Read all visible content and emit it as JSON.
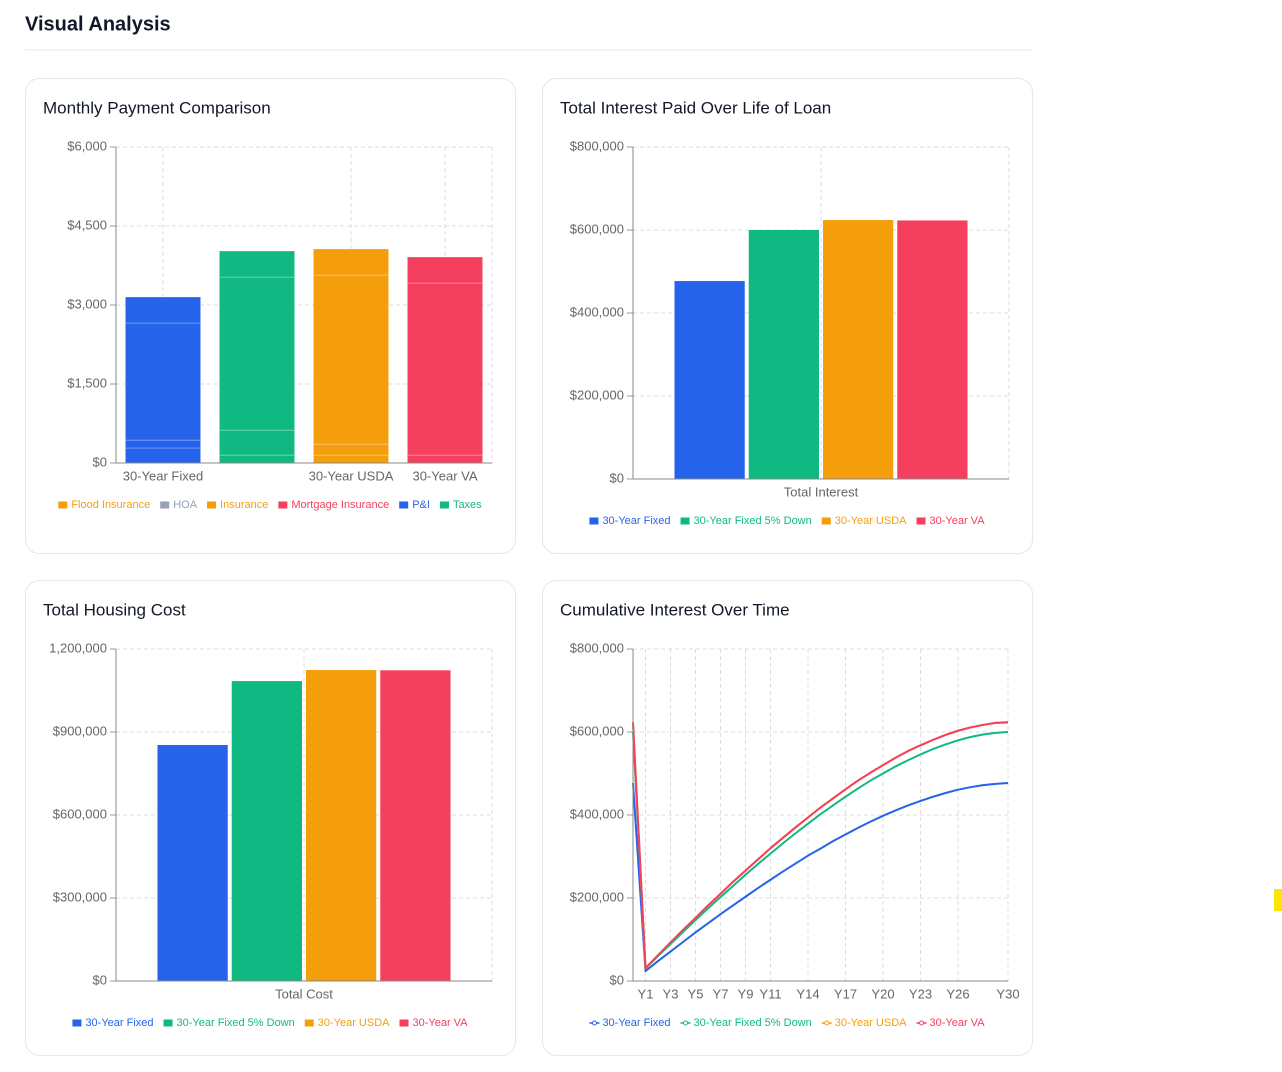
{
  "header": {
    "title": "Visual Analysis"
  },
  "chart_data": [
    {
      "type": "stacked_bar",
      "title": "Monthly Payment Comparison",
      "categories": [
        "30-Year Fixed",
        null,
        "30-Year USDA",
        "30-Year VA"
      ],
      "category_colors": [
        "#2563eb",
        "#10b981",
        "#f59e0b",
        "#f43f5e"
      ],
      "series": [
        {
          "name": "Flood Insurance",
          "color": "#f59e0b",
          "values": [
            285,
            0,
            0,
            0
          ]
        },
        {
          "name": "HOA",
          "color": "#94a3b8",
          "values": [
            0,
            0,
            0,
            0
          ]
        },
        {
          "name": "Insurance",
          "color": "#f59e0b",
          "values": [
            150,
            150,
            150,
            150
          ]
        },
        {
          "name": "Mortgage Insurance",
          "color": "#f43f5e",
          "values": [
            0,
            475,
            209,
            0
          ]
        },
        {
          "name": "P&I",
          "color": "#2563eb",
          "values": [
            2223,
            2906,
            3210,
            3267
          ]
        },
        {
          "name": "Taxes",
          "color": "#10b981",
          "values": [
            494,
            494,
            494,
            494
          ]
        }
      ],
      "ylim": [
        0,
        6000
      ],
      "yticks": [
        {
          "value": 0,
          "label": "$0"
        },
        {
          "value": 1500,
          "label": "$1,500"
        },
        {
          "value": 3000,
          "label": "$3,000"
        },
        {
          "value": 4500,
          "label": "$4,500"
        },
        {
          "value": 6000,
          "label": "$6,000"
        }
      ],
      "grid": true
    },
    {
      "type": "bar",
      "title": "Total Interest Paid Over Life of Loan",
      "categories": [
        "Total Interest"
      ],
      "series": [
        {
          "name": "30-Year Fixed",
          "color": "#2563eb",
          "values": [
            477000
          ]
        },
        {
          "name": "30-Year Fixed 5% Down",
          "color": "#10b981",
          "values": [
            600000
          ]
        },
        {
          "name": "30-Year USDA",
          "color": "#f59e0b",
          "values": [
            624000
          ]
        },
        {
          "name": "30-Year VA",
          "color": "#f43f5e",
          "values": [
            623000
          ]
        }
      ],
      "ylim": [
        0,
        800000
      ],
      "yticks": [
        {
          "value": 0,
          "label": "$0"
        },
        {
          "value": 200000,
          "label": "$200,000"
        },
        {
          "value": 400000,
          "label": "$400,000"
        },
        {
          "value": 600000,
          "label": "$600,000"
        },
        {
          "value": 800000,
          "label": "$800,000"
        }
      ],
      "grid": true
    },
    {
      "type": "bar",
      "title": "Total Housing Cost",
      "categories": [
        "Total Cost"
      ],
      "series": [
        {
          "name": "30-Year Fixed",
          "color": "#2563eb",
          "values": [
            853000
          ]
        },
        {
          "name": "30-Year Fixed 5% Down",
          "color": "#10b981",
          "values": [
            1084000
          ]
        },
        {
          "name": "30-Year USDA",
          "color": "#f59e0b",
          "values": [
            1124000
          ]
        },
        {
          "name": "30-Year VA",
          "color": "#f43f5e",
          "values": [
            1123000
          ]
        }
      ],
      "ylim": [
        0,
        1200000
      ],
      "yticks": [
        {
          "value": 0,
          "label": "$0"
        },
        {
          "value": 300000,
          "label": "$300,000"
        },
        {
          "value": 600000,
          "label": "$600,000"
        },
        {
          "value": 900000,
          "label": "$900,000"
        },
        {
          "value": 1200000,
          "label": "1,200,000"
        }
      ],
      "grid": true
    },
    {
      "type": "line",
      "title": "Cumulative Interest Over Time",
      "categories": [
        null,
        "Y1",
        null,
        "Y3",
        null,
        "Y5",
        null,
        "Y7",
        null,
        "Y9",
        null,
        "Y11",
        null,
        null,
        "Y14",
        null,
        null,
        "Y17",
        null,
        null,
        "Y20",
        null,
        null,
        "Y23",
        null,
        null,
        "Y26",
        null,
        null,
        null,
        "Y30"
      ],
      "series": [
        {
          "name": "30-Year Fixed",
          "color": "#2563eb",
          "values": [
            477000,
            24000,
            48000,
            71000,
            94000,
            117000,
            139000,
            161000,
            182000,
            203000,
            224000,
            244000,
            264000,
            283000,
            302000,
            319000,
            337000,
            353000,
            369000,
            384000,
            398000,
            411000,
            423000,
            434000,
            444000,
            453000,
            461000,
            467000,
            472000,
            475000,
            477000
          ]
        },
        {
          "name": "30-Year Fixed 5% Down",
          "color": "#10b981",
          "values": [
            600000,
            30000,
            60000,
            89000,
            118000,
            147000,
            175000,
            202000,
            229000,
            256000,
            282000,
            307000,
            332000,
            356000,
            379000,
            402000,
            423000,
            444000,
            464000,
            483000,
            500000,
            517000,
            532000,
            546000,
            559000,
            570000,
            580000,
            588000,
            594000,
            598000,
            600000
          ]
        },
        {
          "name": "30-Year USDA",
          "color": "#f59e0b",
          "values": [
            624000,
            31000,
            62000,
            93000,
            123000,
            152000,
            182000,
            210000,
            239000,
            266000,
            293000,
            320000,
            345000,
            370000,
            394000,
            418000,
            440000,
            462000,
            483000,
            502000,
            520000,
            538000,
            554000,
            568000,
            581000,
            593000,
            603000,
            611000,
            617000,
            622000,
            624000
          ]
        },
        {
          "name": "30-Year VA",
          "color": "#f43f5e",
          "values": [
            623000,
            31000,
            62000,
            93000,
            123000,
            152000,
            182000,
            210000,
            239000,
            266000,
            293000,
            320000,
            345000,
            370000,
            394000,
            418000,
            440000,
            462000,
            483000,
            502000,
            520000,
            538000,
            554000,
            568000,
            581000,
            593000,
            603000,
            611000,
            617000,
            622000,
            623000
          ]
        }
      ],
      "ylim": [
        0,
        800000
      ],
      "yticks": [
        {
          "value": 0,
          "label": "$0"
        },
        {
          "value": 200000,
          "label": "$200,000"
        },
        {
          "value": 400000,
          "label": "$400,000"
        },
        {
          "value": 600000,
          "label": "$600,000"
        },
        {
          "value": 800000,
          "label": "$800,000"
        }
      ],
      "grid": true
    }
  ]
}
